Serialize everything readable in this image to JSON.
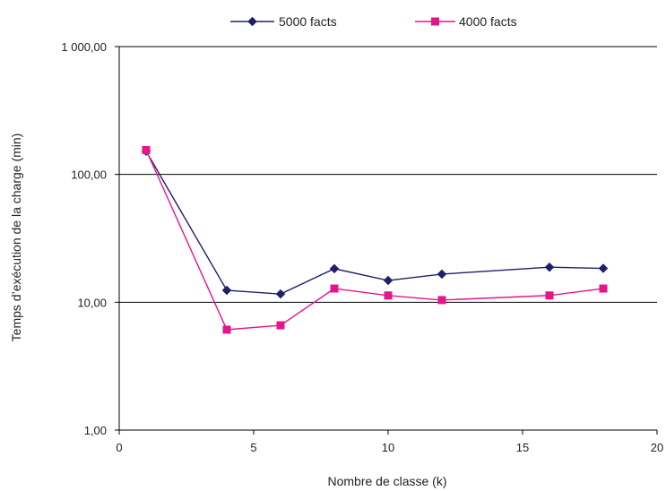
{
  "chart_data": {
    "type": "line",
    "xlabel": "Nombre de classe (k)",
    "ylabel": "Temps d’exécution de la charge (min)",
    "xlim": [
      0,
      20
    ],
    "ylim": [
      1,
      1000
    ],
    "yscale": "log",
    "x_ticks": [
      {
        "value": 0,
        "label": "0"
      },
      {
        "value": 5,
        "label": "5"
      },
      {
        "value": 10,
        "label": "10"
      },
      {
        "value": 15,
        "label": "15"
      },
      {
        "value": 20,
        "label": "20"
      }
    ],
    "y_ticks": [
      {
        "value": 1,
        "label": "1,00"
      },
      {
        "value": 10,
        "label": "10,00"
      },
      {
        "value": 100,
        "label": "100,00"
      },
      {
        "value": 1000,
        "label": "1 000,00"
      }
    ],
    "grid": "horizontal",
    "legend_position": "top",
    "series": [
      {
        "name": "5000 facts",
        "color": "#1f1f6b",
        "marker": "diamond",
        "x": [
          1,
          4,
          6,
          8,
          10,
          12,
          16,
          18
        ],
        "y": [
          152,
          12.4,
          11.6,
          18.3,
          14.8,
          16.6,
          18.8,
          18.4
        ]
      },
      {
        "name": "4000 facts",
        "color": "#e6158c",
        "marker": "square",
        "x": [
          1,
          4,
          6,
          8,
          10,
          12,
          16,
          18
        ],
        "y": [
          155,
          6.1,
          6.6,
          12.8,
          11.3,
          10.4,
          11.3,
          12.8
        ]
      }
    ]
  }
}
